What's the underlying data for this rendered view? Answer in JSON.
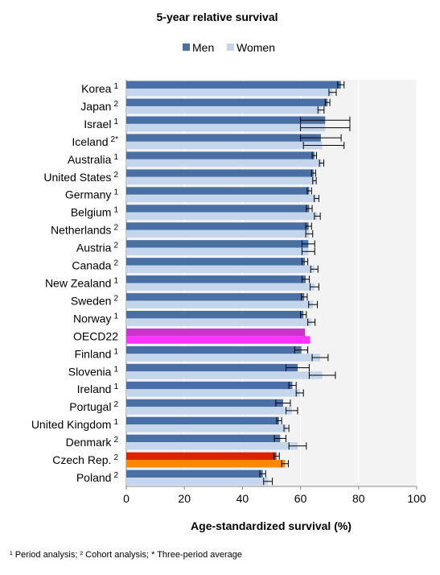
{
  "chart_data": {
    "type": "bar",
    "orientation": "horizontal",
    "title": "5-year relative survival",
    "xlabel": "Age-standardized survival (%)",
    "xlim": [
      0,
      100
    ],
    "xticks": [
      0,
      20,
      40,
      60,
      80,
      100
    ],
    "grid": true,
    "legend_position": "top",
    "series_colors": {
      "men": "#4a6fa5",
      "women": "#c5d6ec"
    },
    "highlight_colors": {
      "oecd_men": "#cc33cc",
      "oecd_women": "#ff33ff",
      "czech_men": "#dd2200",
      "czech_women": "#ff8800"
    },
    "series": [
      {
        "name": "Men",
        "key": "men"
      },
      {
        "name": "Women",
        "key": "women"
      }
    ],
    "categories": [
      {
        "country": "Korea",
        "sup": "1",
        "men": 73.9,
        "men_err": [
          72.8,
          75.0
        ],
        "women": 71.0,
        "women_err": [
          69.8,
          72.3
        ]
      },
      {
        "country": "Japan",
        "sup": "2",
        "men": 69.3,
        "men_err": [
          68.5,
          70.1
        ],
        "women": 67.0,
        "women_err": [
          66.0,
          68.1
        ]
      },
      {
        "country": "Israel",
        "sup": "1",
        "men": 68.5,
        "men_err": [
          60.0,
          77.0
        ],
        "women": 68.5,
        "women_err": [
          60.0,
          77.0
        ]
      },
      {
        "country": "Iceland",
        "sup": "2*",
        "men": 67.0,
        "men_err": [
          60.0,
          74.0
        ],
        "women": 67.5,
        "women_err": [
          61.0,
          75.0
        ]
      },
      {
        "country": "Australia",
        "sup": "1",
        "men": 64.8,
        "men_err": [
          64.0,
          65.5
        ],
        "women": 67.3,
        "women_err": [
          66.5,
          68.0
        ]
      },
      {
        "country": "United States",
        "sup": "2",
        "men": 64.5,
        "men_err": [
          63.8,
          65.2
        ],
        "women": 64.8,
        "women_err": [
          64.2,
          65.4
        ]
      },
      {
        "country": "Germany",
        "sup": "1",
        "men": 63.0,
        "men_err": [
          62.3,
          63.8
        ],
        "women": 65.5,
        "women_err": [
          64.7,
          66.3
        ]
      },
      {
        "country": "Belgium",
        "sup": "1",
        "men": 63.0,
        "men_err": [
          62.0,
          64.0
        ],
        "women": 65.8,
        "women_err": [
          64.8,
          66.8
        ]
      },
      {
        "country": "Netherlands",
        "sup": "2",
        "men": 62.8,
        "men_err": [
          61.8,
          63.8
        ],
        "women": 63.0,
        "women_err": [
          61.8,
          64.2
        ]
      },
      {
        "country": "Austria",
        "sup": "2",
        "men": 62.7,
        "men_err": [
          60.5,
          64.9
        ],
        "women": 62.7,
        "women_err": [
          60.5,
          64.9
        ]
      },
      {
        "country": "Canada",
        "sup": "2",
        "men": 61.5,
        "men_err": [
          60.5,
          62.5
        ],
        "women": 64.8,
        "women_err": [
          63.5,
          66.0
        ]
      },
      {
        "country": "New Zealand",
        "sup": "1",
        "men": 61.8,
        "men_err": [
          60.5,
          63.0
        ],
        "women": 64.8,
        "women_err": [
          63.3,
          66.3
        ]
      },
      {
        "country": "Sweden",
        "sup": "2",
        "men": 61.3,
        "men_err": [
          60.3,
          62.3
        ],
        "women": 64.3,
        "women_err": [
          62.8,
          65.8
        ]
      },
      {
        "country": "Norway",
        "sup": "1",
        "men": 61.0,
        "men_err": [
          60.0,
          62.0
        ],
        "women": 63.8,
        "women_err": [
          62.5,
          65.0
        ]
      },
      {
        "country": "OECD22",
        "sup": "",
        "men": 61.5,
        "men_err": null,
        "women": 63.3,
        "women_err": null
      },
      {
        "country": "Finland",
        "sup": "1",
        "men": 60.3,
        "men_err": [
          58.0,
          62.5
        ],
        "women": 66.8,
        "women_err": [
          64.0,
          69.5
        ]
      },
      {
        "country": "Slovenia",
        "sup": "1",
        "men": 59.0,
        "men_err": [
          55.0,
          63.0
        ],
        "women": 67.5,
        "women_err": [
          63.0,
          72.0
        ]
      },
      {
        "country": "Ireland",
        "sup": "1",
        "men": 57.2,
        "men_err": [
          56.0,
          58.5
        ],
        "women": 59.8,
        "women_err": [
          58.5,
          61.0
        ]
      },
      {
        "country": "Portugal",
        "sup": "2",
        "men": 54.0,
        "men_err": [
          51.5,
          56.5
        ],
        "women": 57.0,
        "women_err": [
          55.0,
          59.0
        ]
      },
      {
        "country": "United Kingdom",
        "sup": "1",
        "men": 52.6,
        "men_err": [
          51.8,
          53.5
        ],
        "women": 55.2,
        "women_err": [
          54.3,
          56.0
        ]
      },
      {
        "country": "Denmark",
        "sup": "2",
        "men": 53.0,
        "men_err": [
          51.0,
          55.0
        ],
        "women": 59.0,
        "women_err": [
          56.0,
          62.0
        ]
      },
      {
        "country": "Czech Rep.",
        "sup": "2",
        "men": 51.7,
        "men_err": [
          50.8,
          52.7
        ],
        "women": 54.7,
        "women_err": [
          53.5,
          55.8
        ]
      },
      {
        "country": "Poland",
        "sup": "2",
        "men": 47.0,
        "men_err": [
          46.0,
          48.0
        ],
        "women": 48.8,
        "women_err": [
          47.3,
          50.3
        ]
      }
    ]
  },
  "footnote": "¹ Period analysis; ² Cohort analysis; * Three-period average"
}
